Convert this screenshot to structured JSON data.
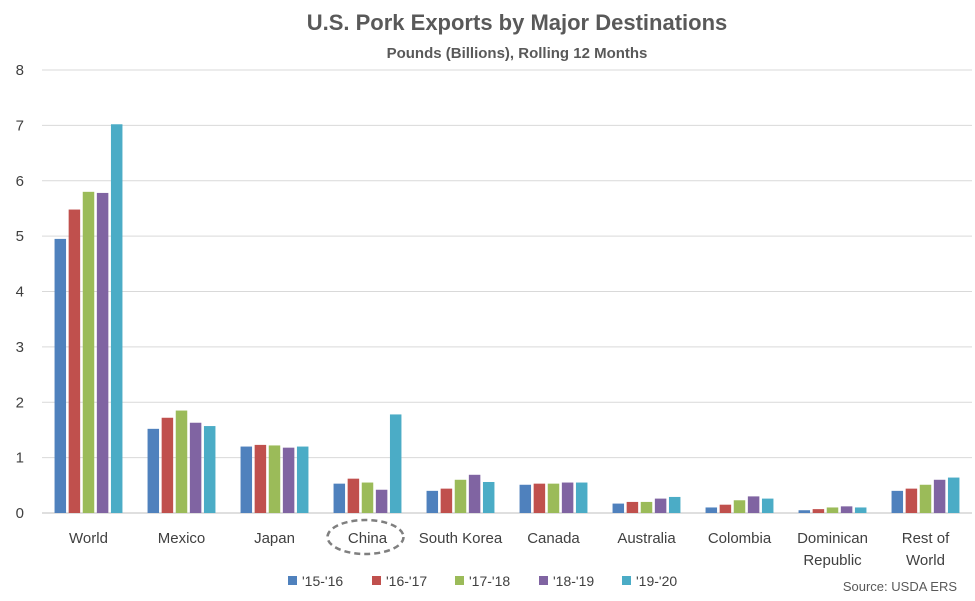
{
  "chart_data": {
    "type": "bar",
    "title": "U.S. Pork Exports by Major Destinations",
    "subtitle": "Pounds (Billions), Rolling 12 Months",
    "categories": [
      [
        "World"
      ],
      [
        "Mexico"
      ],
      [
        "Japan"
      ],
      [
        "China"
      ],
      [
        "South Korea"
      ],
      [
        "Canada"
      ],
      [
        "Australia"
      ],
      [
        "Colombia"
      ],
      [
        "Dominican",
        "Republic"
      ],
      [
        "Rest of",
        "World"
      ]
    ],
    "ylim": [
      0,
      8
    ],
    "yticks": [
      0,
      1,
      2,
      3,
      4,
      5,
      6,
      7,
      8
    ],
    "grid": true,
    "legend_position": "bottom",
    "highlighted_category": "China",
    "series": [
      {
        "name": "'15-'16",
        "color": "#4f81bd",
        "values": [
          4.95,
          1.52,
          1.2,
          0.53,
          0.4,
          0.51,
          0.17,
          0.1,
          0.05,
          0.4
        ]
      },
      {
        "name": "'16-'17",
        "color": "#c0504d",
        "values": [
          5.48,
          1.72,
          1.23,
          0.62,
          0.44,
          0.53,
          0.2,
          0.15,
          0.07,
          0.44
        ]
      },
      {
        "name": "'17-'18",
        "color": "#9bbb59",
        "values": [
          5.8,
          1.85,
          1.22,
          0.55,
          0.6,
          0.53,
          0.2,
          0.23,
          0.1,
          0.51
        ]
      },
      {
        "name": "'18-'19",
        "color": "#8064a2",
        "values": [
          5.78,
          1.63,
          1.18,
          0.42,
          0.69,
          0.55,
          0.26,
          0.3,
          0.12,
          0.6
        ]
      },
      {
        "name": "'19-'20",
        "color": "#4bacc6",
        "values": [
          7.02,
          1.57,
          1.2,
          1.78,
          0.56,
          0.55,
          0.29,
          0.26,
          0.1,
          0.64
        ]
      }
    ],
    "source": "Source: USDA ERS"
  }
}
